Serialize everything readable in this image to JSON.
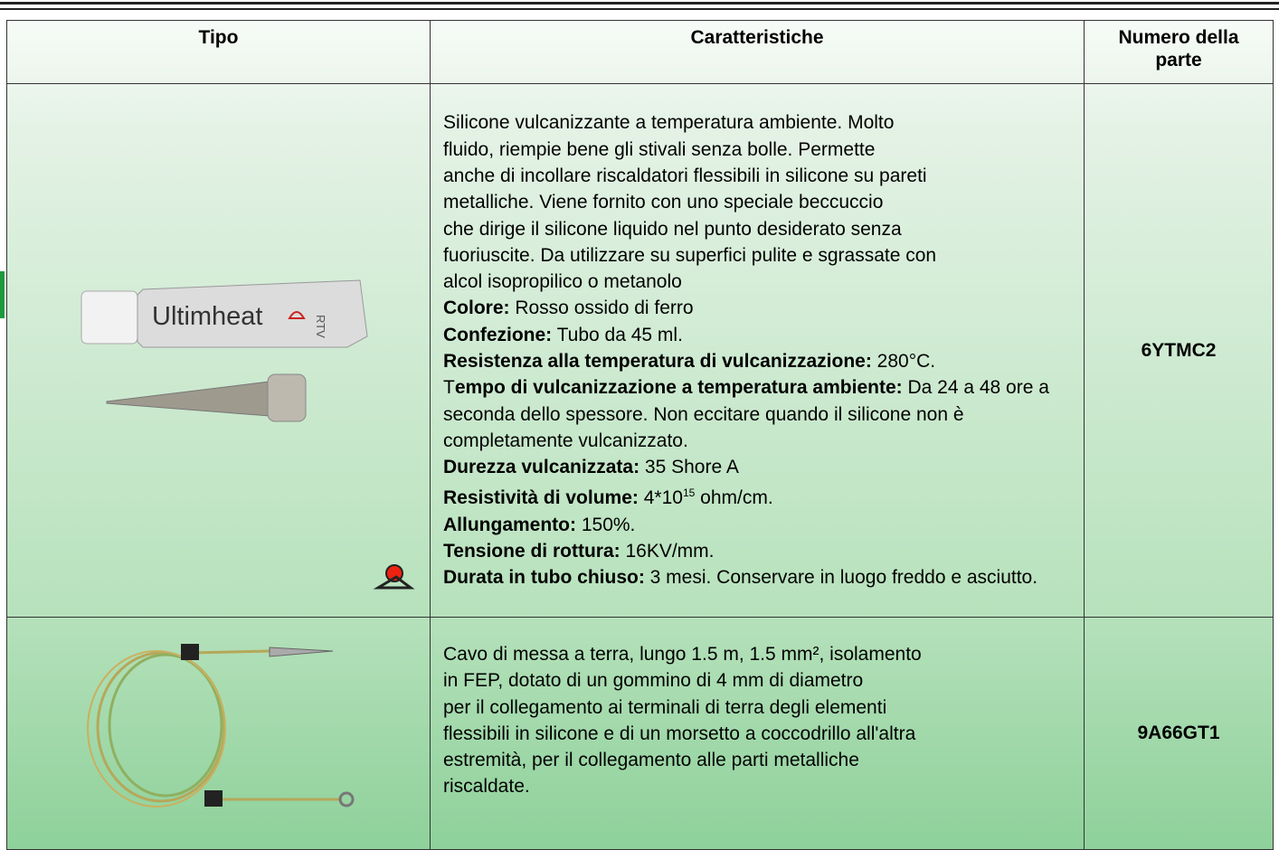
{
  "table": {
    "headers": [
      "Tipo",
      "Caratteristiche",
      "Numero della parte"
    ],
    "rows": [
      {
        "image": {
          "brand": "Ultimheat",
          "mark": "RTV"
        },
        "description": [
          "Silicone vulcanizzante a temperatura ambiente. Molto",
          "fluido, riempie bene gli stivali senza bolle. Permette",
          "anche di incollare riscaldatori flessibili in silicone su pareti",
          "metalliche. Viene fornito con uno speciale beccuccio",
          "che dirige il silicone liquido nel punto desiderato senza",
          "fuoriuscite. Da utilizzare su superfici pulite e sgrassate con",
          "alcol isopropilico o metanolo"
        ],
        "properties": [
          {
            "label": "Colore:",
            "text": " Rosso ossido di ferro"
          },
          {
            "label": "Confezione:",
            "text": " Tubo da 45 ml."
          },
          {
            "label": "Resistenza alla temperatura di vulcanizzazione:",
            "text": " 280°C."
          },
          {
            "prefix": "T",
            "label": "empo di vulcanizzazione a temperatura ambiente:",
            "text": " Da 24 a 48 ore a seconda dello spessore. Non eccitare quando il silicone non è completamente vulcanizzato."
          },
          {
            "label": "Durezza vulcanizzata:",
            "text": " 35 Shore A"
          },
          {
            "label": "Resistività di volume:",
            "text": " 4*10",
            "sup": "15",
            "after": " ohm/cm."
          },
          {
            "label": "Allungamento:",
            "text": " 150%."
          },
          {
            "label": "Tensione di rottura:",
            "text": " 16KV/mm."
          },
          {
            "label": "Durata in tubo chiuso:",
            "text": " 3 mesi. Conservare in luogo freddo e asciutto."
          }
        ],
        "part": "6YTMC2"
      },
      {
        "description": [
          "Cavo di messa a terra, lungo 1.5 m, 1.5 mm², isolamento",
          "in FEP, dotato di un gommino di 4 mm di diametro",
          "per il collegamento ai terminali di terra degli elementi",
          "flessibili in silicone e di un morsetto a coccodrillo all'altra",
          "estremità, per il collegamento alle parti metalliche",
          "riscaldate."
        ],
        "part": "9A66GT1"
      }
    ]
  }
}
